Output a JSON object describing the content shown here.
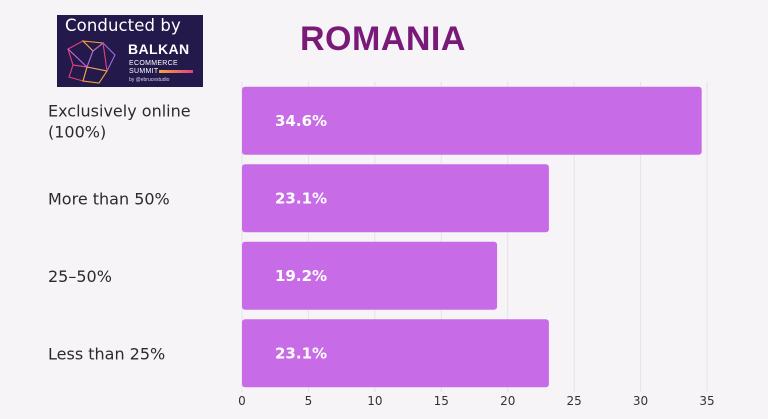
{
  "header": {
    "title": "ROMANIA",
    "logo": {
      "conducted_by": "Conducted by",
      "name": "BALKAN",
      "line1": "ECOMMERCE",
      "line2": "SUMMIT",
      "by": "by @ebrucestudio",
      "colors": {
        "background": "#231a4b",
        "accent_start": "#f4a53a",
        "accent_end": "#e0427c"
      }
    }
  },
  "chart_data": {
    "type": "bar",
    "orientation": "horizontal",
    "title": "ROMANIA",
    "categories": [
      [
        "Exclusively online",
        "(100%)"
      ],
      [
        "More than 50%"
      ],
      [
        "25–50%"
      ],
      [
        "Less than 25%"
      ]
    ],
    "values": [
      34.6,
      23.1,
      19.2,
      23.1
    ],
    "value_labels": [
      "34.6%",
      "23.1%",
      "19.2%",
      "23.1%"
    ],
    "xlim": [
      0,
      35
    ],
    "xticks": [
      0,
      5,
      10,
      15,
      20,
      25,
      30,
      35
    ],
    "grid": "vertical",
    "legend": "none",
    "colors": {
      "bar": "#c86be6",
      "grid": "#e6e0ea",
      "title": "#7a1a78"
    }
  }
}
